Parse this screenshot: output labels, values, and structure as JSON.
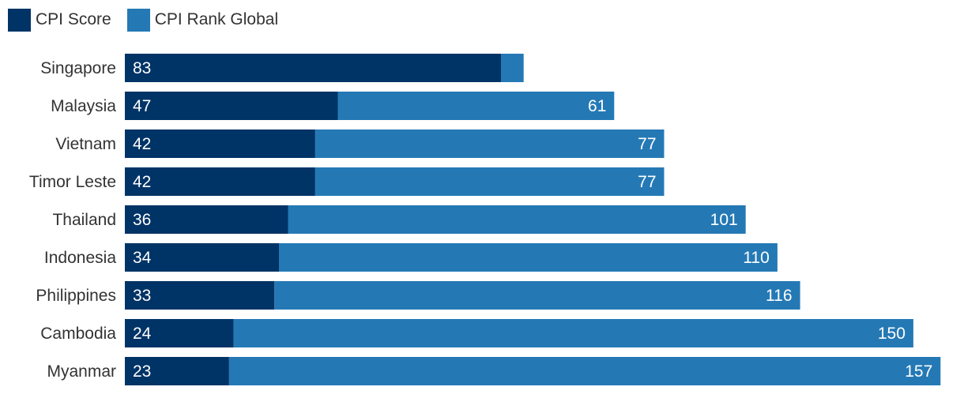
{
  "legend": {
    "items": [
      {
        "label": "CPI Score",
        "color": "#003366"
      },
      {
        "label": "CPI Rank Global",
        "color": "#2479b5"
      }
    ],
    "position": "top-left"
  },
  "chart_data": {
    "type": "bar",
    "orientation": "horizontal",
    "stacked": true,
    "categories": [
      "Singapore",
      "Malaysia",
      "Vietnam",
      "Timor Leste",
      "Thailand",
      "Indonesia",
      "Philippines",
      "Cambodia",
      "Myanmar"
    ],
    "series": [
      {
        "name": "CPI Score",
        "color": "#003366",
        "values": [
          83,
          47,
          42,
          42,
          36,
          34,
          33,
          24,
          23
        ],
        "labels": [
          "83",
          "47",
          "42",
          "42",
          "36",
          "34",
          "33",
          "24",
          "23"
        ]
      },
      {
        "name": "CPI Rank Global",
        "color": "#2479b5",
        "values": [
          5,
          61,
          77,
          77,
          101,
          110,
          116,
          150,
          157
        ],
        "labels": [
          "",
          "61",
          "77",
          "77",
          "101",
          "110",
          "116",
          "150",
          "157"
        ]
      }
    ],
    "title": "",
    "xlabel": "",
    "ylabel": "",
    "xlim": [
      0,
      180
    ],
    "grid": false,
    "axis_visible": false
  }
}
